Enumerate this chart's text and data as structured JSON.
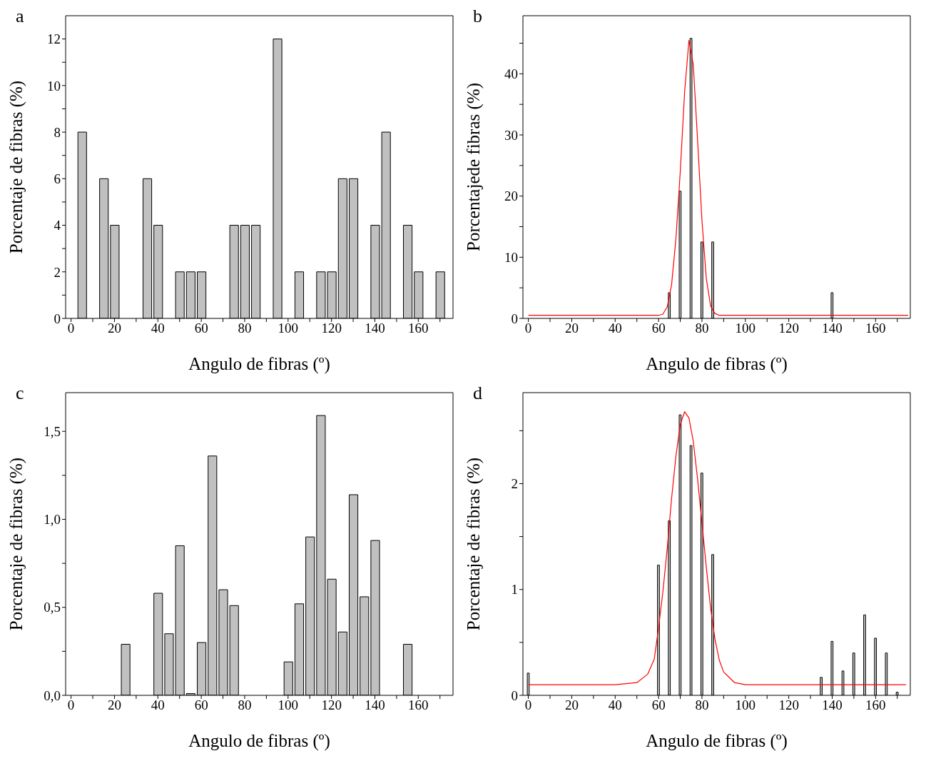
{
  "chart_data": [
    {
      "type": "bar",
      "title": "a",
      "xlabel": "Angulo de fibras (º)",
      "ylabel": "Porcentaje de fibras (%)",
      "xlim": [
        -2.5,
        176
      ],
      "ylim": [
        0,
        13
      ],
      "xticks": [
        0,
        {
          "value": 10,
          "label": null
        },
        20,
        {
          "value": 30,
          "label": null
        },
        40,
        {
          "value": 50,
          "label": null
        },
        60,
        {
          "value": 70,
          "label": null
        },
        80,
        {
          "value": 90,
          "label": null
        },
        100,
        {
          "value": 110,
          "label": null
        },
        120,
        {
          "value": 130,
          "label": null
        },
        140,
        {
          "value": 150,
          "label": null
        },
        160,
        {
          "value": 170,
          "label": null
        }
      ],
      "yticks": [
        0,
        {
          "value": 1,
          "label": null
        },
        2,
        {
          "value": 3,
          "label": null
        },
        4,
        {
          "value": 5,
          "label": null
        },
        6,
        {
          "value": 7,
          "label": null
        },
        8,
        {
          "value": 9,
          "label": null
        },
        10,
        {
          "value": 11,
          "label": null
        },
        12
      ],
      "legend": false,
      "series": [
        {
          "color": "#c0c0c0",
          "x": [
            5,
            15,
            20,
            35,
            40,
            50,
            55,
            60,
            75,
            80,
            85,
            95,
            105,
            115,
            120,
            125,
            130,
            140,
            145,
            155,
            160,
            170
          ],
          "values": [
            8,
            6,
            4,
            6,
            4,
            2,
            2,
            2,
            4,
            4,
            4,
            12,
            2,
            2,
            2,
            6,
            6,
            4,
            8,
            4,
            2,
            2
          ]
        }
      ]
    },
    {
      "type": "bar",
      "title": "b",
      "xlabel": "Angulo de fibras (º)",
      "ylabel": "Porcentajede fibras (%)",
      "xlim": [
        -2.5,
        176
      ],
      "ylim": [
        0,
        49.5
      ],
      "xticks": [
        0,
        {
          "value": 10,
          "label": null
        },
        20,
        {
          "value": 30,
          "label": null
        },
        40,
        {
          "value": 50,
          "label": null
        },
        60,
        {
          "value": 70,
          "label": null
        },
        80,
        {
          "value": 90,
          "label": null
        },
        100,
        {
          "value": 110,
          "label": null
        },
        120,
        {
          "value": 130,
          "label": null
        },
        140,
        {
          "value": 150,
          "label": null
        },
        160,
        {
          "value": 170,
          "label": null
        }
      ],
      "yticks": [
        0,
        {
          "value": 5,
          "label": null
        },
        10,
        {
          "value": 15,
          "label": null
        },
        20,
        {
          "value": 25,
          "label": null
        },
        30,
        {
          "value": 35,
          "label": null
        },
        40,
        {
          "value": 45,
          "label": null
        }
      ],
      "legend": false,
      "series": [
        {
          "color": "#c0c0c0",
          "x": [
            65,
            70,
            75,
            80,
            85,
            140
          ],
          "values": [
            4.2,
            20.8,
            45.8,
            12.5,
            12.5,
            4.2
          ]
        },
        {
          "type": "line",
          "color": "#ff0000",
          "marker": "none",
          "x": [
            0,
            60,
            62,
            64,
            66,
            68,
            70,
            72,
            74,
            76,
            78,
            80,
            82,
            84,
            86,
            88,
            175
          ],
          "values": [
            0.5,
            0.5,
            0.7,
            1.9,
            5.5,
            13,
            24,
            37,
            45.5,
            41.5,
            29,
            16,
            6.5,
            2,
            0.8,
            0.5,
            0.5
          ]
        }
      ]
    },
    {
      "type": "bar",
      "title": "c",
      "xlabel": "Angulo de fibras (º)",
      "ylabel": "Porcentaje de fibras (%)",
      "xlim": [
        -2.5,
        176
      ],
      "ylim": [
        0,
        1.72
      ],
      "xticks": [
        0,
        {
          "value": 10,
          "label": null
        },
        20,
        {
          "value": 30,
          "label": null
        },
        40,
        {
          "value": 50,
          "label": null
        },
        60,
        {
          "value": 70,
          "label": null
        },
        80,
        {
          "value": 90,
          "label": null
        },
        100,
        {
          "value": 110,
          "label": null
        },
        120,
        {
          "value": 130,
          "label": null
        },
        140,
        {
          "value": 150,
          "label": null
        },
        160,
        {
          "value": 170,
          "label": null
        }
      ],
      "yticks": [
        {
          "value": 0,
          "label": "0,0"
        },
        {
          "value": 0.25,
          "label": null
        },
        {
          "value": 0.5,
          "label": "0,5"
        },
        {
          "value": 0.75,
          "label": null
        },
        {
          "value": 1,
          "label": "1,0"
        },
        {
          "value": 1.25,
          "label": null
        },
        {
          "value": 1.5,
          "label": "1,5"
        }
      ],
      "legend": false,
      "series": [
        {
          "color": "#c0c0c0",
          "x": [
            25,
            40,
            45,
            50,
            55,
            60,
            65,
            70,
            75,
            100,
            105,
            110,
            115,
            120,
            125,
            130,
            135,
            140,
            155
          ],
          "values": [
            0.29,
            0.58,
            0.35,
            0.85,
            0.01,
            0.3,
            1.36,
            0.6,
            0.51,
            0.19,
            0.52,
            0.9,
            1.59,
            0.66,
            0.36,
            1.14,
            0.56,
            0.88,
            0.29
          ]
        }
      ]
    },
    {
      "type": "bar",
      "title": "d",
      "xlabel": "Angulo de fibras (º)",
      "ylabel": "Porcentaje de fibras (%)",
      "xlim": [
        -2.5,
        176
      ],
      "ylim": [
        0,
        2.86
      ],
      "xticks": [
        0,
        {
          "value": 10,
          "label": null
        },
        20,
        {
          "value": 30,
          "label": null
        },
        40,
        {
          "value": 50,
          "label": null
        },
        60,
        {
          "value": 70,
          "label": null
        },
        80,
        {
          "value": 90,
          "label": null
        },
        100,
        {
          "value": 110,
          "label": null
        },
        120,
        {
          "value": 130,
          "label": null
        },
        140,
        {
          "value": 150,
          "label": null
        },
        160,
        {
          "value": 170,
          "label": null
        }
      ],
      "yticks": [
        0,
        {
          "value": 0.5,
          "label": null
        },
        1,
        {
          "value": 1.5,
          "label": null
        },
        2,
        {
          "value": 2.5,
          "label": null
        }
      ],
      "legend": false,
      "series": [
        {
          "color": "#c0c0c0",
          "x": [
            0,
            60,
            65,
            70,
            75,
            80,
            85,
            135,
            140,
            145,
            150,
            155,
            160,
            165,
            170
          ],
          "values": [
            0.21,
            1.23,
            1.65,
            2.65,
            2.36,
            2.1,
            1.33,
            0.17,
            0.51,
            0.23,
            0.4,
            0.76,
            0.54,
            0.4,
            0.03
          ]
        },
        {
          "type": "line",
          "color": "#ff0000",
          "marker": "none",
          "x": [
            0,
            40,
            45,
            50,
            55,
            58,
            60,
            62,
            64,
            66,
            68,
            70,
            72,
            74,
            76,
            78,
            80,
            82,
            84,
            86,
            88,
            90,
            95,
            100,
            110,
            174
          ],
          "values": [
            0.1,
            0.1,
            0.11,
            0.12,
            0.2,
            0.34,
            0.64,
            0.98,
            1.39,
            1.86,
            2.26,
            2.56,
            2.68,
            2.62,
            2.4,
            2.04,
            1.63,
            1.21,
            0.82,
            0.53,
            0.33,
            0.22,
            0.12,
            0.1,
            0.1,
            0.1
          ]
        }
      ]
    }
  ]
}
